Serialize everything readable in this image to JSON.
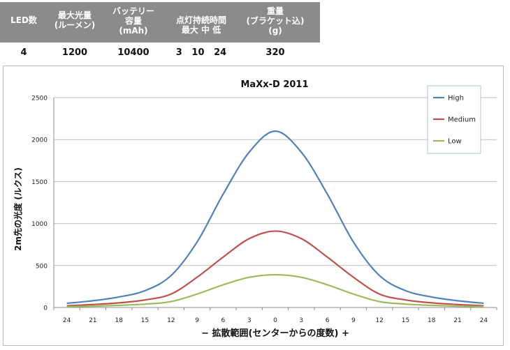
{
  "spec_table": {
    "headers": [
      {
        "lines": [
          "LED数"
        ]
      },
      {
        "lines": [
          "最大光量",
          "(ルーメン)"
        ]
      },
      {
        "lines": [
          "バッテリー",
          "容量",
          "(mAh)"
        ]
      },
      {
        "lines": [
          "点灯持続時間",
          "最大  中  低"
        ]
      },
      {
        "lines": [
          "重量",
          "(ブラケット込)",
          "(g)"
        ]
      }
    ],
    "values": [
      "4",
      "1200",
      "10400",
      "3   10   24",
      "320"
    ]
  },
  "colors": {
    "header_bg": "#8c8a8c",
    "high": "#4f81bd",
    "medium": "#c0504d",
    "low": "#9bbb59"
  },
  "chart_data": {
    "type": "line",
    "title": "MaXx-D  2011",
    "ylabel": "2m先の光度 (ルクス)",
    "xlabel": "−  拡散範囲(センターからの度数)  +",
    "categories": [
      "24",
      "21",
      "18",
      "15",
      "12",
      "9",
      "6",
      "3",
      "0",
      "3",
      "6",
      "9",
      "12",
      "15",
      "18",
      "21",
      "24"
    ],
    "ylim": [
      0,
      2500
    ],
    "yticks": [
      0,
      500,
      1000,
      1500,
      2000,
      2500
    ],
    "grid": true,
    "legend": "top-right",
    "series": [
      {
        "name": "High",
        "color": "#4f81bd",
        "values": [
          50,
          80,
          125,
          200,
          380,
          780,
          1350,
          1850,
          2100,
          1850,
          1350,
          780,
          380,
          200,
          125,
          80,
          50
        ]
      },
      {
        "name": "Medium",
        "color": "#c0504d",
        "values": [
          20,
          35,
          55,
          90,
          160,
          360,
          600,
          820,
          910,
          820,
          600,
          360,
          160,
          90,
          55,
          35,
          20
        ]
      },
      {
        "name": "Low",
        "color": "#9bbb59",
        "values": [
          10,
          15,
          25,
          40,
          70,
          160,
          270,
          360,
          390,
          360,
          270,
          160,
          70,
          40,
          25,
          15,
          10
        ]
      }
    ]
  }
}
